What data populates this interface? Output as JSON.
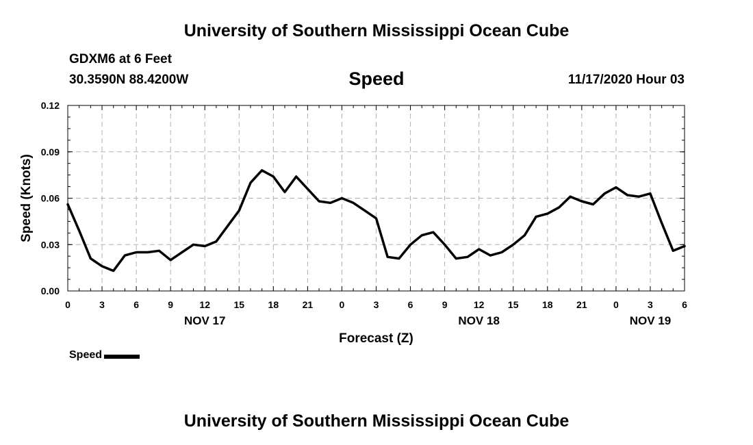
{
  "header": {
    "title": "University of Southern Mississippi Ocean Cube",
    "station": "GDXM6 at 6 Feet",
    "coords": "30.3590N 88.4200W",
    "datetime": "11/17/2020 Hour 03"
  },
  "footer": {
    "title": "University of Southern Mississippi Ocean Cube"
  },
  "legend": {
    "label": "Speed",
    "color": "#000000"
  },
  "chart_data": {
    "type": "line",
    "title": "Speed",
    "xlabel": "Forecast (Z)",
    "ylabel": "Speed (Knots)",
    "xlim": [
      0,
      54
    ],
    "ylim": [
      0,
      0.12
    ],
    "grid": true,
    "x_ticks": [
      {
        "x": 0,
        "label": "0"
      },
      {
        "x": 3,
        "label": "3"
      },
      {
        "x": 6,
        "label": "6"
      },
      {
        "x": 9,
        "label": "9"
      },
      {
        "x": 12,
        "label": "12"
      },
      {
        "x": 15,
        "label": "15"
      },
      {
        "x": 18,
        "label": "18"
      },
      {
        "x": 21,
        "label": "21"
      },
      {
        "x": 24,
        "label": "0"
      },
      {
        "x": 27,
        "label": "3"
      },
      {
        "x": 30,
        "label": "6"
      },
      {
        "x": 33,
        "label": "9"
      },
      {
        "x": 36,
        "label": "12"
      },
      {
        "x": 39,
        "label": "15"
      },
      {
        "x": 42,
        "label": "18"
      },
      {
        "x": 45,
        "label": "21"
      },
      {
        "x": 48,
        "label": "0"
      },
      {
        "x": 51,
        "label": "3"
      },
      {
        "x": 54,
        "label": "6"
      }
    ],
    "y_ticks": [
      {
        "y": 0,
        "label": "0.00"
      },
      {
        "y": 0.03,
        "label": "0.03"
      },
      {
        "y": 0.06,
        "label": "0.06"
      },
      {
        "y": 0.09,
        "label": "0.09"
      },
      {
        "y": 0.12,
        "label": "0.12"
      }
    ],
    "day_labels": [
      {
        "x": 12,
        "label": "NOV 17"
      },
      {
        "x": 36,
        "label": "NOV 18"
      },
      {
        "x": 51,
        "label": "NOV 19"
      }
    ],
    "series": [
      {
        "name": "Speed",
        "color": "#000000",
        "x": [
          0,
          1,
          2,
          3,
          4,
          5,
          6,
          7,
          8,
          9,
          10,
          11,
          12,
          13,
          14,
          15,
          16,
          17,
          18,
          19,
          20,
          21,
          22,
          23,
          24,
          25,
          26,
          27,
          28,
          29,
          30,
          31,
          32,
          33,
          34,
          35,
          36,
          37,
          38,
          39,
          40,
          41,
          42,
          43,
          44,
          45,
          46,
          47,
          48,
          49,
          50,
          51,
          52,
          53,
          54
        ],
        "values": [
          0.056,
          0.039,
          0.021,
          0.016,
          0.013,
          0.023,
          0.025,
          0.025,
          0.026,
          0.02,
          0.025,
          0.03,
          0.029,
          0.032,
          0.042,
          0.052,
          0.07,
          0.078,
          0.074,
          0.064,
          0.074,
          0.066,
          0.058,
          0.057,
          0.06,
          0.057,
          0.052,
          0.047,
          0.022,
          0.021,
          0.03,
          0.036,
          0.038,
          0.03,
          0.021,
          0.022,
          0.027,
          0.023,
          0.025,
          0.03,
          0.036,
          0.048,
          0.05,
          0.054,
          0.061,
          0.058,
          0.056,
          0.063,
          0.067,
          0.062,
          0.061,
          0.063,
          0.044,
          0.026,
          0.029
        ]
      }
    ]
  }
}
